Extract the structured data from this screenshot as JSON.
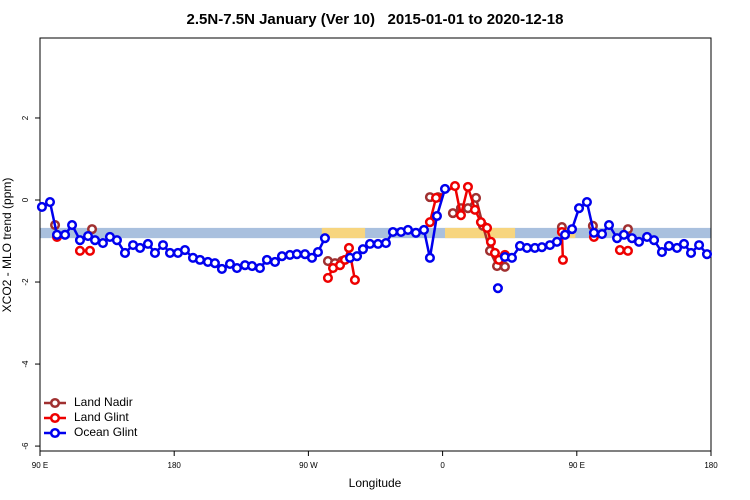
{
  "chart_data": {
    "type": "line",
    "title": "2.5N-7.5N January (Ver 10)   2015-01-01 to 2020-12-18",
    "xlabel": "Longitude",
    "ylabel": "XCO2 - MLO trend (ppm)",
    "xlim": [
      90,
      540
    ],
    "ylim": [
      -6.12,
      3.95
    ],
    "xticks": [
      {
        "value": 90,
        "label": "90 E"
      },
      {
        "value": 180,
        "label": "180"
      },
      {
        "value": 270,
        "label": "90 W"
      },
      {
        "value": 360,
        "label": "0"
      },
      {
        "value": 450,
        "label": "90 E"
      },
      {
        "value": 540,
        "label": "180"
      }
    ],
    "yticks": [
      2,
      0,
      -2,
      -4,
      -6
    ],
    "legend": "lower left",
    "background_band": {
      "ylim": [
        -0.93,
        -0.68
      ],
      "color": "#a9c0de",
      "land_color": "#f7d57f",
      "land_ranges": [
        [
          279,
          308
        ],
        [
          361.6,
          408.6
        ],
        [
          439,
          449
        ]
      ]
    },
    "series": [
      {
        "name": "Land Nadir",
        "color": "#a03030",
        "x": [
          100.1,
          null,
          124.9,
          null,
          283.1,
          287.8,
          292.5,
          null,
          351.5,
          356.9,
          null,
          366.9,
          372.3,
          377.0,
          382.4,
          387.1,
          391.8,
          396.5,
          401.8,
          null,
          440.0,
          null,
          460.8,
          null,
          484.3
        ],
        "values": [
          -0.61,
          null,
          -0.71,
          null,
          -1.49,
          -1.54,
          -1.49,
          null,
          0.07,
          0.07,
          null,
          -0.32,
          -0.2,
          -0.2,
          0.05,
          -0.63,
          -1.24,
          -1.61,
          -1.63,
          null,
          -0.66,
          null,
          -0.63,
          null,
          -0.71
        ]
      },
      {
        "name": "Land Glint",
        "color": "#ee0000",
        "x": [
          101.4,
          null,
          116.8,
          123.5,
          null,
          283.1,
          286.5,
          291.2,
          294.5,
          297.2,
          301.2,
          null,
          351.5,
          355.6,
          368.3,
          372.3,
          377.0,
          381.7,
          385.7,
          389.8,
          392.4,
          395.1,
          397.8,
          401.8,
          null,
          440.0,
          440.7,
          null,
          461.5,
          null,
          478.9,
          484.3
        ],
        "values": [
          -0.9,
          null,
          -1.24,
          -1.24,
          null,
          -1.9,
          -1.66,
          -1.59,
          -1.46,
          -1.17,
          -1.95,
          null,
          -0.54,
          0.05,
          0.34,
          -0.37,
          0.32,
          -0.24,
          -0.54,
          -0.68,
          -1.02,
          -1.29,
          -1.46,
          -1.34,
          null,
          -0.78,
          -1.46,
          null,
          -0.9,
          null,
          -1.22,
          -1.24
        ]
      },
      {
        "name": "Ocean Glint",
        "color": "#0000ee",
        "x": [
          91.3,
          96.7,
          101.4,
          106.8,
          111.5,
          116.8,
          122.2,
          126.9,
          132.2,
          136.9,
          141.6,
          147.0,
          152.4,
          157.1,
          162.4,
          167.1,
          172.5,
          177.2,
          182.5,
          187.2,
          192.6,
          197.3,
          202.6,
          207.3,
          212.0,
          217.4,
          222.1,
          227.5,
          232.2,
          237.5,
          242.2,
          247.6,
          252.3,
          257.6,
          262.3,
          267.7,
          272.4,
          276.4,
          281.1,
          null,
          297.9,
          302.6,
          306.6,
          311.3,
          316.7,
          322.0,
          326.7,
          332.1,
          336.8,
          342.1,
          347.5,
          351.5,
          356.2,
          361.6,
          null,
          397.1,
          null,
          401.8,
          406.5,
          411.9,
          416.6,
          421.9,
          426.6,
          432.0,
          436.7,
          442.1,
          446.8,
          451.5,
          456.8,
          461.5,
          466.9,
          471.6,
          477.0,
          481.6,
          487.0,
          491.7,
          497.1,
          501.8,
          507.1,
          511.8,
          517.2,
          521.9,
          526.6,
          532.0,
          537.3
        ],
        "values": [
          -0.17,
          -0.05,
          -0.85,
          -0.85,
          -0.61,
          -0.98,
          -0.88,
          -0.98,
          -1.05,
          -0.9,
          -0.98,
          -1.29,
          -1.1,
          -1.17,
          -1.07,
          -1.29,
          -1.1,
          -1.29,
          -1.29,
          -1.22,
          -1.41,
          -1.46,
          -1.51,
          -1.54,
          -1.68,
          -1.56,
          -1.66,
          -1.59,
          -1.61,
          -1.66,
          -1.46,
          -1.51,
          -1.37,
          -1.34,
          -1.32,
          -1.32,
          -1.41,
          -1.27,
          -0.93,
          null,
          -1.41,
          -1.37,
          -1.2,
          -1.07,
          -1.07,
          -1.05,
          -0.78,
          -0.78,
          -0.73,
          -0.8,
          -0.73,
          -1.41,
          -0.39,
          0.27,
          null,
          -2.15,
          null,
          -1.39,
          -1.41,
          -1.12,
          -1.17,
          -1.17,
          -1.15,
          -1.1,
          -1.02,
          -0.85,
          -0.71,
          -0.2,
          -0.05,
          -0.8,
          -0.83,
          -0.61,
          -0.93,
          -0.85,
          -0.93,
          -1.02,
          -0.9,
          -0.98,
          -1.27,
          -1.12,
          -1.17,
          -1.07,
          -1.29,
          -1.1,
          -1.32
        ]
      }
    ]
  }
}
